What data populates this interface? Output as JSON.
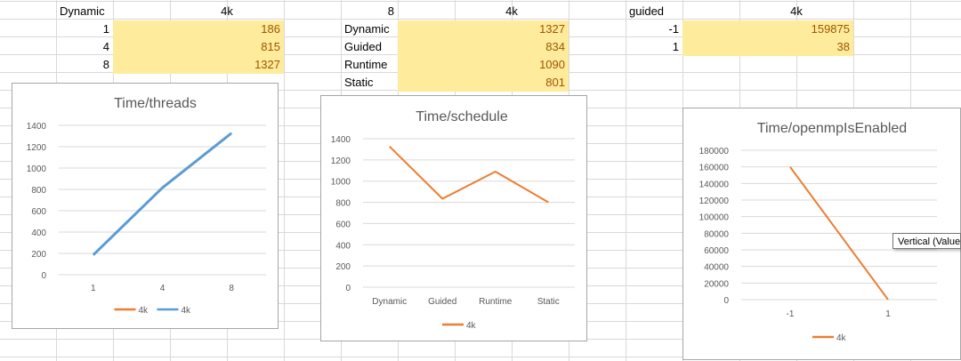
{
  "table1": {
    "header_label": "Dynamic",
    "header_col": "4k",
    "rows": [
      {
        "threads": "1",
        "value": "186"
      },
      {
        "threads": "4",
        "value": "815"
      },
      {
        "threads": "8",
        "value": "1327"
      }
    ]
  },
  "table2": {
    "header_label": "8",
    "header_col": "4k",
    "rows": [
      {
        "schedule": "Dynamic",
        "value": "1327"
      },
      {
        "schedule": "Guided",
        "value": "834"
      },
      {
        "schedule": "Runtime",
        "value": "1090"
      },
      {
        "schedule": "Static",
        "value": "801"
      }
    ]
  },
  "table3": {
    "header_label": "guided",
    "header_col": "4k",
    "rows": [
      {
        "flag": "-1",
        "value": "159875"
      },
      {
        "flag": "1",
        "value": "38"
      }
    ]
  },
  "tooltip": "Vertical (Value",
  "colors": {
    "orange": "#ed7d31",
    "blue": "#5b9bd5",
    "highlight": "#ffeb9c",
    "highlight_text": "#9c5700"
  },
  "chart_data": [
    {
      "type": "line",
      "title": "Time/threads",
      "categories": [
        "1",
        "4",
        "8"
      ],
      "ylim": [
        0,
        1400
      ],
      "yticks": [
        "0",
        "200",
        "400",
        "600",
        "800",
        "1000",
        "1200",
        "1400"
      ],
      "legend_position": "bottom",
      "series": [
        {
          "name": "4k",
          "values": [
            186,
            815,
            1327
          ],
          "color": "#ed7d31"
        },
        {
          "name": "4k",
          "values": [
            186,
            815,
            1327
          ],
          "color": "#5b9bd5"
        }
      ],
      "grid": true
    },
    {
      "type": "line",
      "title": "Time/schedule",
      "categories": [
        "Dynamic",
        "Guided",
        "Runtime",
        "Static"
      ],
      "ylim": [
        0,
        1400
      ],
      "yticks": [
        "0",
        "200",
        "400",
        "600",
        "800",
        "1000",
        "1200",
        "1400"
      ],
      "legend_position": "bottom",
      "series": [
        {
          "name": "4k",
          "values": [
            1327,
            834,
            1090,
            801
          ],
          "color": "#ed7d31"
        }
      ],
      "grid": true
    },
    {
      "type": "line",
      "title": "Time/openmpIsEnabled",
      "categories": [
        "-1",
        "1"
      ],
      "ylim": [
        0,
        180000
      ],
      "yticks": [
        "0",
        "20000",
        "40000",
        "60000",
        "80000",
        "100000",
        "120000",
        "140000",
        "160000",
        "180000"
      ],
      "legend_position": "bottom",
      "series": [
        {
          "name": "4k",
          "values": [
            159875,
            38
          ],
          "color": "#ed7d31"
        }
      ],
      "grid": true
    }
  ]
}
